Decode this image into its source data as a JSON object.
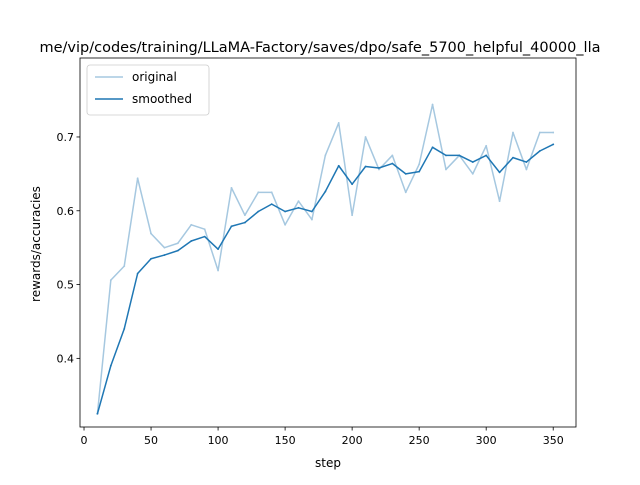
{
  "chart_data": {
    "type": "line",
    "title": "me/vip/codes/training/LLaMA-Factory/saves/dpo/safe_5700_helpful_40000_lla",
    "xlabel": "step",
    "ylabel": "rewards/accuracies",
    "xlim": [
      -3,
      367
    ],
    "ylim": [
      0.307,
      0.807
    ],
    "xticks": [
      0,
      50,
      100,
      150,
      200,
      250,
      300,
      350
    ],
    "xtick_labels": [
      "0",
      "50",
      "100",
      "150",
      "200",
      "250",
      "300",
      "350"
    ],
    "yticks": [
      0.4,
      0.5,
      0.6,
      0.7
    ],
    "ytick_labels": [
      "0.4",
      "0.5",
      "0.6",
      "0.7"
    ],
    "grid": false,
    "legend": {
      "placement": "top-left",
      "entries": [
        "original",
        "smoothed"
      ]
    },
    "x": [
      10,
      20,
      30,
      40,
      50,
      60,
      70,
      80,
      90,
      100,
      110,
      120,
      130,
      140,
      150,
      160,
      170,
      180,
      190,
      200,
      210,
      220,
      230,
      240,
      250,
      260,
      270,
      280,
      290,
      300,
      310,
      320,
      330,
      340,
      350
    ],
    "series": [
      {
        "name": "original",
        "color": "#a6c8e0",
        "values": [
          0.325,
          0.506,
          0.525,
          0.644,
          0.569,
          0.55,
          0.556,
          0.581,
          0.575,
          0.519,
          0.631,
          0.594,
          0.625,
          0.625,
          0.581,
          0.613,
          0.588,
          0.675,
          0.719,
          0.594,
          0.7,
          0.656,
          0.675,
          0.625,
          0.663,
          0.744,
          0.656,
          0.675,
          0.65,
          0.688,
          0.613,
          0.706,
          0.656,
          0.706,
          0.706
        ]
      },
      {
        "name": "smoothed",
        "color": "#1f77b4",
        "values": [
          0.325,
          0.39,
          0.44,
          0.515,
          0.535,
          0.54,
          0.546,
          0.559,
          0.565,
          0.548,
          0.579,
          0.584,
          0.599,
          0.609,
          0.599,
          0.604,
          0.599,
          0.626,
          0.661,
          0.636,
          0.66,
          0.658,
          0.664,
          0.65,
          0.653,
          0.686,
          0.675,
          0.675,
          0.666,
          0.675,
          0.652,
          0.672,
          0.666,
          0.681,
          0.69
        ]
      }
    ]
  }
}
